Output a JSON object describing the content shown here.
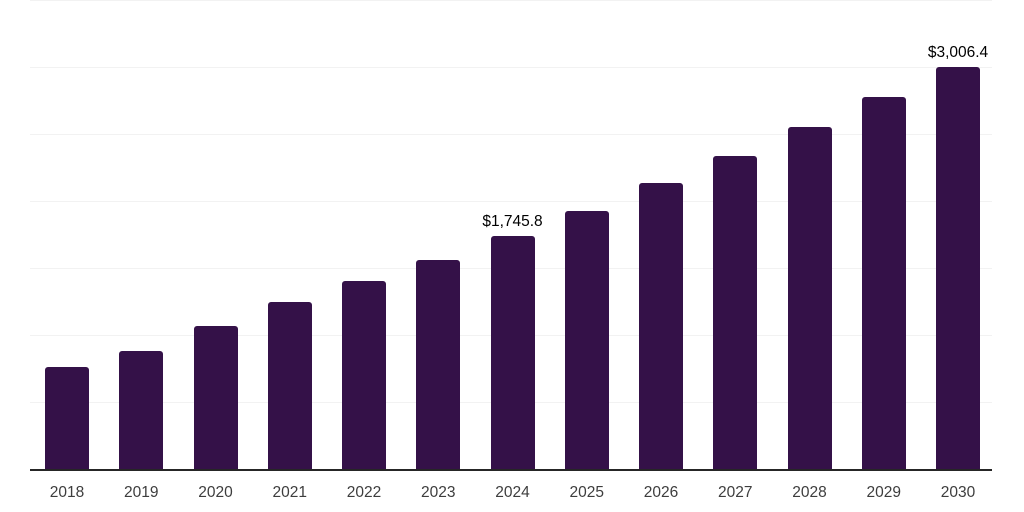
{
  "chart_data": {
    "type": "bar",
    "title": "",
    "categories": [
      "2018",
      "2019",
      "2020",
      "2021",
      "2022",
      "2023",
      "2024",
      "2025",
      "2026",
      "2027",
      "2028",
      "2029",
      "2030"
    ],
    "values": [
      770,
      890,
      1075,
      1255,
      1410,
      1565,
      1745.8,
      1935,
      2140,
      2345,
      2560,
      2785,
      3006.4
    ],
    "annotations": [
      {
        "category": "2024",
        "index": 6,
        "label": "$1,745.8"
      },
      {
        "category": "2030",
        "index": 12,
        "label": "$3,006.4"
      }
    ],
    "xlabel": "",
    "ylabel": "",
    "ylim": [
      0,
      3500
    ],
    "grid_step": 500,
    "grid": true,
    "legend_position": "none",
    "colors": {
      "bar": "#341148",
      "grid": "#f2f2f2",
      "axis": "#262626",
      "tick_label": "#3d3d3d",
      "annotation": "#000000",
      "background": "#ffffff"
    }
  }
}
